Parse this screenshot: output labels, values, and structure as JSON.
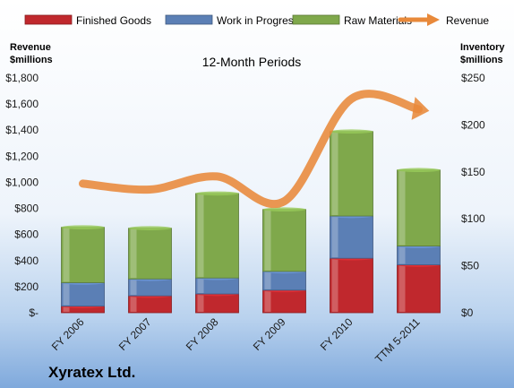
{
  "company": "Xyratex Ltd.",
  "chart_data": {
    "type": "bar",
    "subtitle": "12-Month Periods",
    "categories": [
      "FY 2006",
      "FY 2007",
      "FY 2008",
      "FY 2009",
      "FY 2010",
      "TTM 5-2011"
    ],
    "left_axis": {
      "title_line1": "Revenue",
      "title_line2": "$millions",
      "ylim": [
        0,
        1800
      ],
      "ticks": [
        0,
        200,
        400,
        600,
        800,
        1000,
        1200,
        1400,
        1600,
        1800
      ],
      "tick_labels": [
        "$-",
        "$200",
        "$400",
        "$600",
        "$800",
        "$1,000",
        "$1,200",
        "$1,400",
        "$1,600",
        "$1,800"
      ]
    },
    "right_axis": {
      "title_line1": "Inventory",
      "title_line2": "$millions",
      "ylim": [
        0,
        250
      ],
      "ticks": [
        0,
        50,
        100,
        150,
        200,
        250
      ],
      "tick_labels": [
        "$0",
        "$50",
        "$100",
        "$150",
        "$200",
        "$250"
      ]
    },
    "stacked_series": [
      {
        "name": "Finished Goods",
        "axis": "right",
        "color": "#c0282d",
        "values": [
          7,
          18,
          20,
          24,
          58,
          51
        ]
      },
      {
        "name": "Work in Progress",
        "axis": "right",
        "color": "#5b7fb5",
        "values": [
          25,
          18,
          17,
          20,
          45,
          20
        ]
      },
      {
        "name": "Raw Materials",
        "axis": "right",
        "color": "#7fa84b",
        "values": [
          59,
          54,
          90,
          66,
          90,
          81
        ]
      }
    ],
    "line_series": {
      "name": "Revenue",
      "axis": "left",
      "color": "#e8893a",
      "values": [
        990,
        945,
        1045,
        855,
        1640,
        1560
      ]
    },
    "grid": false,
    "legend_position": "top"
  }
}
